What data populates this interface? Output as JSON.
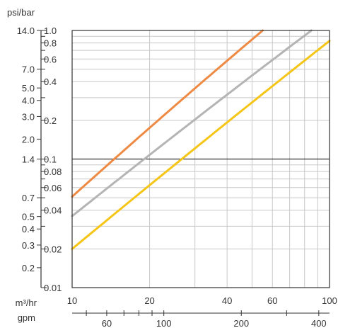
{
  "chart_data": {
    "type": "line",
    "title": "",
    "x_scale": "log",
    "y_scale": "log",
    "xlim": [
      10,
      100
    ],
    "ylim_bar": [
      0.01,
      1.0
    ],
    "grid": true,
    "legend": "none",
    "axis_titles": {
      "psi_bar": "psi/bar",
      "m3hr": "m³/hr",
      "gpm": "gpm"
    },
    "x_ticks_m3hr": [
      {
        "value": 10,
        "label": "10"
      },
      {
        "value": 20,
        "label": "20"
      },
      {
        "value": 40,
        "label": "40"
      },
      {
        "value": 60,
        "label": "60"
      },
      {
        "value": 100,
        "label": "100"
      }
    ],
    "x_ticks_gpm": [
      {
        "value": 60,
        "label": "60"
      },
      {
        "value": 100,
        "label": "100"
      },
      {
        "value": 200,
        "label": "200"
      },
      {
        "value": 400,
        "label": "400"
      }
    ],
    "y_ticks_bar": [
      {
        "value": 1.0,
        "label": "1.0"
      },
      {
        "value": 0.8,
        "label": "0.8"
      },
      {
        "value": 0.6,
        "label": "0.6"
      },
      {
        "value": 0.4,
        "label": "0.4"
      },
      {
        "value": 0.2,
        "label": "0.2"
      },
      {
        "value": 0.1,
        "label": "0.1"
      },
      {
        "value": 0.08,
        "label": "0.08"
      },
      {
        "value": 0.06,
        "label": "0.06"
      },
      {
        "value": 0.04,
        "label": "0.04"
      },
      {
        "value": 0.02,
        "label": "0.02"
      },
      {
        "value": 0.01,
        "label": "0.01"
      }
    ],
    "y_ticks_psi": [
      {
        "value": 14.0,
        "label": "14.0"
      },
      {
        "value": 7.0,
        "label": "7.0"
      },
      {
        "value": 5.0,
        "label": "5.0"
      },
      {
        "value": 4.0,
        "label": "4.0"
      },
      {
        "value": 3.0,
        "label": "3.0"
      },
      {
        "value": 2.0,
        "label": "2.0"
      },
      {
        "value": 1.4,
        "label": "1.4"
      },
      {
        "value": 0.7,
        "label": "0.7"
      },
      {
        "value": 0.5,
        "label": "0.5"
      },
      {
        "value": 0.4,
        "label": "0.4"
      },
      {
        "value": 0.3,
        "label": "0.3"
      },
      {
        "value": 0.2,
        "label": "0.2"
      }
    ],
    "series": [
      {
        "color": "#ee8a43",
        "x": [
          10,
          55
        ],
        "y": [
          0.051,
          1.0
        ]
      },
      {
        "color": "#b4b4b4",
        "x": [
          10,
          85
        ],
        "y": [
          0.036,
          1.0
        ]
      },
      {
        "color": "#f5c518",
        "x": [
          10,
          100
        ],
        "y": [
          0.02,
          0.83
        ]
      }
    ]
  }
}
